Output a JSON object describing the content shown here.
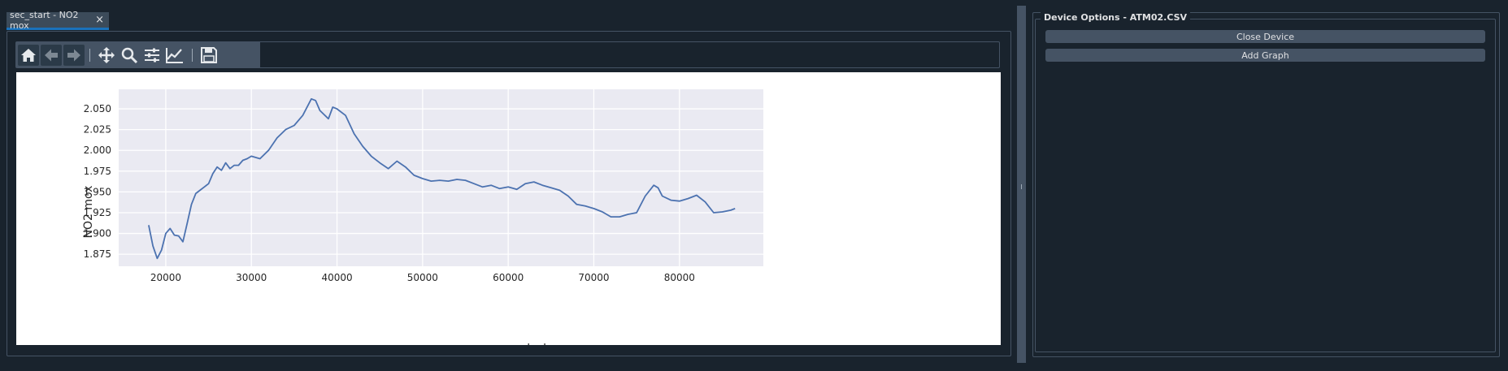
{
  "tab": {
    "label": "sec_start - NO2 mox",
    "close_glyph": "×"
  },
  "toolbar": {
    "buttons": [
      {
        "name": "home-icon"
      },
      {
        "name": "back-arrow-icon"
      },
      {
        "name": "forward-arrow-icon"
      },
      {
        "name": "pan-icon"
      },
      {
        "name": "zoom-icon"
      },
      {
        "name": "configure-subplots-icon"
      },
      {
        "name": "edit-axis-icon"
      },
      {
        "name": "save-icon"
      }
    ]
  },
  "device_options": {
    "title": "Device Options - ATM02.CSV",
    "close_device_label": "Close Device",
    "add_graph_label": "Add Graph"
  },
  "colors": {
    "background": "#19232d",
    "border": "#455364",
    "plot_background": "#eaeaf2",
    "line": "#4c72b0",
    "tab_accent": "#1a72bb"
  },
  "chart_data": {
    "type": "line",
    "xlabel": "sec_start",
    "ylabel": "NO2 mox",
    "xlim": [
      14500,
      89800
    ],
    "ylim": [
      1.8605,
      2.0735
    ],
    "xticks": [
      20000,
      30000,
      40000,
      50000,
      60000,
      70000,
      80000
    ],
    "xtick_labels": [
      "20000",
      "30000",
      "40000",
      "50000",
      "60000",
      "70000",
      "80000"
    ],
    "yticks": [
      1.875,
      1.9,
      1.925,
      1.95,
      1.975,
      2.0,
      2.025,
      2.05
    ],
    "ytick_labels": [
      "1.875",
      "1.900",
      "1.925",
      "1.950",
      "1.975",
      "2.000",
      "2.025",
      "2.050"
    ],
    "grid": true,
    "series": [
      {
        "x": [
          18000,
          18500,
          19000,
          19500,
          20000,
          20500,
          21000,
          21500,
          22000,
          22500,
          23000,
          23500,
          24000,
          24500,
          25000,
          25500,
          26000,
          26500,
          27000,
          27500,
          28000,
          28500,
          29000,
          29500,
          30000,
          31000,
          32000,
          33000,
          34000,
          35000,
          36000,
          37000,
          37500,
          38000,
          39000,
          39500,
          40000,
          41000,
          42000,
          43000,
          44000,
          45000,
          46000,
          47000,
          48000,
          49000,
          50000,
          51000,
          52000,
          53000,
          54000,
          55000,
          56000,
          57000,
          58000,
          59000,
          60000,
          61000,
          62000,
          63000,
          64000,
          65000,
          66000,
          67000,
          68000,
          69000,
          70000,
          71000,
          72000,
          73000,
          74000,
          75000,
          76000,
          77000,
          77500,
          78000,
          79000,
          80000,
          81000,
          82000,
          83000,
          84000,
          85000,
          86000,
          86500
        ],
        "y": [
          1.91,
          1.885,
          1.87,
          1.88,
          1.9,
          1.906,
          1.898,
          1.897,
          1.89,
          1.912,
          1.935,
          1.948,
          1.952,
          1.956,
          1.96,
          1.972,
          1.98,
          1.976,
          1.985,
          1.978,
          1.982,
          1.982,
          1.988,
          1.99,
          1.993,
          1.99,
          2.0,
          2.015,
          2.025,
          2.03,
          2.042,
          2.062,
          2.06,
          2.048,
          2.038,
          2.052,
          2.05,
          2.042,
          2.02,
          2.005,
          1.993,
          1.985,
          1.978,
          1.987,
          1.98,
          1.97,
          1.966,
          1.963,
          1.964,
          1.963,
          1.965,
          1.964,
          1.96,
          1.956,
          1.958,
          1.954,
          1.956,
          1.953,
          1.96,
          1.962,
          1.958,
          1.955,
          1.952,
          1.945,
          1.935,
          1.933,
          1.93,
          1.926,
          1.92,
          1.92,
          1.923,
          1.925,
          1.945,
          1.958,
          1.955,
          1.945,
          1.94,
          1.939,
          1.942,
          1.946,
          1.938,
          1.925,
          1.926,
          1.928,
          1.93
        ]
      }
    ]
  }
}
